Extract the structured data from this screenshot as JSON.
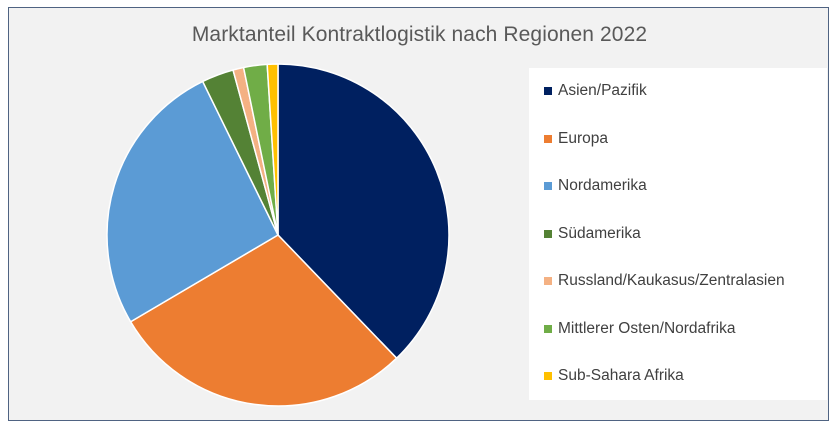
{
  "chart_data": {
    "type": "pie",
    "title": "Marktanteil Kontraktlogistik nach Regionen 2022",
    "legend_position": "right",
    "slices": [
      {
        "label": "Asien/Pazifik",
        "value": 37.5,
        "color": "#002060"
      },
      {
        "label": "Europa",
        "value": 28.5,
        "color": "#ed7d31"
      },
      {
        "label": "Nordamerika",
        "value": 26.0,
        "color": "#5b9bd5"
      },
      {
        "label": "Südamerika",
        "value": 3.0,
        "color": "#548235"
      },
      {
        "label": "Russland/Kaukasus/Zentralasien",
        "value": 1.0,
        "color": "#f4b183"
      },
      {
        "label": "Mittlerer Osten/Nordafrika",
        "value": 2.2,
        "color": "#70ad47"
      },
      {
        "label": "Sub-Sahara Afrika",
        "value": 1.0,
        "color": "#ffc000"
      }
    ]
  }
}
